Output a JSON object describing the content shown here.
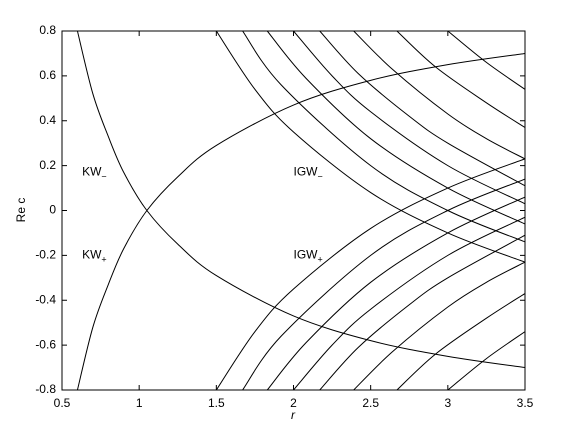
{
  "chart_data": {
    "type": "line",
    "xlabel": "r",
    "ylabel": "Re c",
    "xlim": [
      0.5,
      3.5
    ],
    "ylim": [
      -0.8,
      0.8
    ],
    "xticks": [
      0.5,
      1,
      1.5,
      2,
      2.5,
      3,
      3.5
    ],
    "yticks": [
      -0.8,
      -0.6,
      -0.4,
      -0.2,
      0,
      0.2,
      0.4,
      0.6,
      0.8
    ],
    "color": "#000000",
    "annotations": [
      {
        "text": "KW",
        "sub": "−"
      },
      {
        "text": "KW",
        "sub": "+"
      },
      {
        "text": "IGW",
        "sub": "−"
      },
      {
        "text": "IGW",
        "sub": "+"
      }
    ],
    "series": [
      {
        "x": [
          0.6,
          0.7,
          0.8,
          0.9,
          1.05,
          1.25,
          1.5,
          2,
          2.5,
          3,
          3.5
        ],
        "values": [
          -0.8,
          -0.52,
          -0.33,
          -0.17,
          0,
          0.15,
          0.29,
          0.47,
          0.58,
          0.65,
          0.7
        ]
      },
      {
        "x": [
          0.6,
          0.7,
          0.8,
          0.9,
          1.05,
          1.25,
          1.5,
          2,
          2.5,
          3,
          3.5
        ],
        "values": [
          0.8,
          0.52,
          0.33,
          0.17,
          0,
          -0.15,
          -0.29,
          -0.47,
          -0.58,
          -0.65,
          -0.7
        ]
      },
      {
        "x": [
          1.5,
          1.75,
          2,
          2.5,
          3,
          3.5
        ],
        "values": [
          0.8,
          0.54,
          0.35,
          0.08,
          -0.1,
          -0.23
        ]
      },
      {
        "x": [
          1.67,
          1.92,
          2.5,
          3,
          3.5
        ],
        "values": [
          0.8,
          0.56,
          0.2,
          0,
          -0.14
        ]
      },
      {
        "x": [
          1.83,
          2.08,
          2.5,
          3,
          3.5
        ],
        "values": [
          0.8,
          0.59,
          0.32,
          0.1,
          -0.06
        ]
      },
      {
        "x": [
          2,
          2.25,
          2.5,
          3,
          3.5
        ],
        "values": [
          0.8,
          0.6,
          0.44,
          0.2,
          0.03
        ]
      },
      {
        "x": [
          2.17,
          2.42,
          2.75,
          3,
          3.5
        ],
        "values": [
          0.8,
          0.61,
          0.42,
          0.3,
          0.11
        ]
      },
      {
        "x": [
          2.39,
          2.64,
          3,
          3.25,
          3.5
        ],
        "values": [
          0.8,
          0.63,
          0.43,
          0.32,
          0.23
        ]
      },
      {
        "x": [
          2.67,
          2.92,
          3.25,
          3.5
        ],
        "values": [
          0.8,
          0.64,
          0.48,
          0.37
        ]
      },
      {
        "x": [
          3,
          3.25,
          3.5
        ],
        "values": [
          0.8,
          0.66,
          0.54
        ]
      },
      {
        "x": [
          1.5,
          1.75,
          2,
          2.5,
          3,
          3.5
        ],
        "values": [
          -0.8,
          -0.54,
          -0.35,
          -0.08,
          0.1,
          0.23
        ]
      },
      {
        "x": [
          1.67,
          1.92,
          2.5,
          3,
          3.5
        ],
        "values": [
          -0.8,
          -0.56,
          -0.2,
          0,
          0.14
        ]
      },
      {
        "x": [
          1.83,
          2.08,
          2.5,
          3,
          3.5
        ],
        "values": [
          -0.8,
          -0.59,
          -0.32,
          -0.1,
          0.06
        ]
      },
      {
        "x": [
          2,
          2.25,
          2.5,
          3,
          3.5
        ],
        "values": [
          -0.8,
          -0.6,
          -0.44,
          -0.2,
          -0.03
        ]
      },
      {
        "x": [
          2.17,
          2.42,
          2.75,
          3,
          3.5
        ],
        "values": [
          -0.8,
          -0.61,
          -0.42,
          -0.3,
          -0.11
        ]
      },
      {
        "x": [
          2.39,
          2.64,
          3,
          3.25,
          3.5
        ],
        "values": [
          -0.8,
          -0.63,
          -0.43,
          -0.32,
          -0.23
        ]
      },
      {
        "x": [
          2.67,
          2.92,
          3.25,
          3.5
        ],
        "values": [
          -0.8,
          -0.64,
          -0.48,
          -0.37
        ]
      },
      {
        "x": [
          3,
          3.25,
          3.5
        ],
        "values": [
          -0.8,
          -0.66,
          -0.54
        ]
      }
    ]
  }
}
